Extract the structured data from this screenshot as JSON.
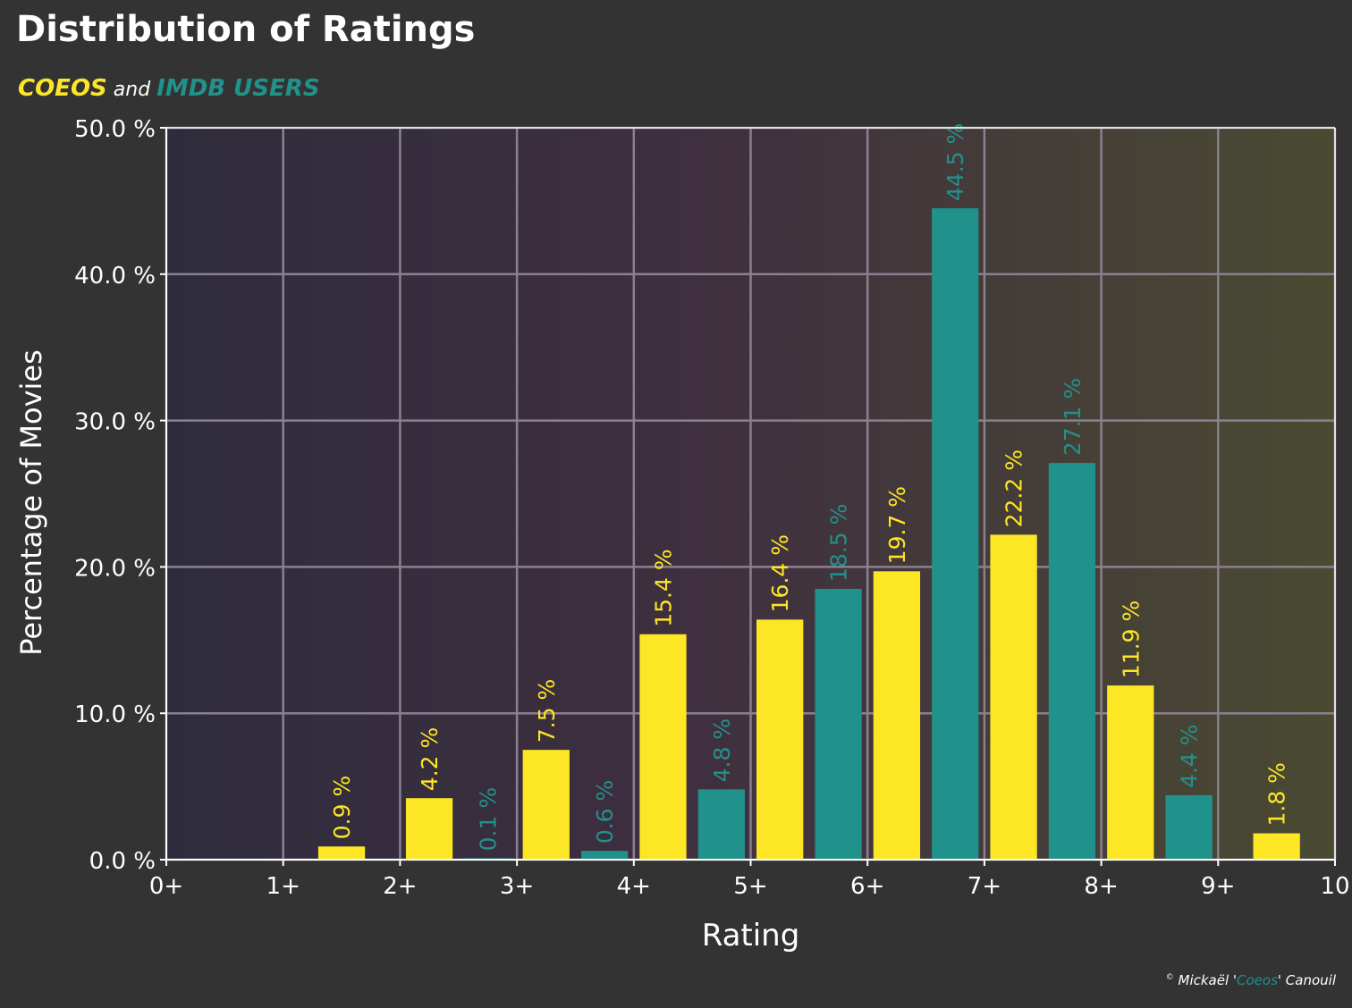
{
  "header": {
    "title": "Distribution of Ratings",
    "subtitle_part1": "COEOS",
    "subtitle_part2": " and ",
    "subtitle_part3": "IMDB USERS"
  },
  "credit": {
    "symbol": "©",
    "prefix": " Mickaël '",
    "accent": "Coeos",
    "suffix": "' Canouil"
  },
  "colors": {
    "background": "#333333",
    "plot_gradient_left": "#2e2c3c",
    "plot_gradient_mid": "#3f2f3f",
    "plot_gradient_right": "#4a4a32",
    "grid": "#8a8090",
    "coeos": "#fde725",
    "imdb": "#21918c",
    "text": "#ffffff"
  },
  "chart_data": {
    "type": "bar",
    "title": "Distribution of Ratings",
    "xlabel": "Rating",
    "ylabel": "Percentage of Movies",
    "xlim": [
      0,
      10
    ],
    "ylim": [
      0,
      50
    ],
    "x_ticks": [
      0,
      1,
      2,
      3,
      4,
      5,
      6,
      7,
      8,
      9,
      10
    ],
    "x_tick_labels": [
      "0+",
      "1+",
      "2+",
      "3+",
      "4+",
      "5+",
      "6+",
      "7+",
      "8+",
      "9+",
      "10"
    ],
    "y_ticks": [
      0,
      10,
      20,
      30,
      40,
      50
    ],
    "y_tick_labels": [
      "0.0 %",
      "10.0 %",
      "20.0 %",
      "30.0 %",
      "40.0 %",
      "50.0 %"
    ],
    "grid": true,
    "series": [
      {
        "name": "COEOS",
        "color": "#fde725",
        "points": [
          {
            "rating": "1+",
            "x": 1.5,
            "value": 0.9,
            "label": "0.9 %"
          },
          {
            "rating": "2+",
            "x": 2.25,
            "value": 4.2,
            "label": "4.2 %"
          },
          {
            "rating": "3+",
            "x": 3.25,
            "value": 7.5,
            "label": "7.5 %"
          },
          {
            "rating": "4+",
            "x": 4.25,
            "value": 15.4,
            "label": "15.4 %"
          },
          {
            "rating": "5+",
            "x": 5.25,
            "value": 16.4,
            "label": "16.4 %"
          },
          {
            "rating": "6+",
            "x": 6.25,
            "value": 19.7,
            "label": "19.7 %"
          },
          {
            "rating": "7+",
            "x": 7.25,
            "value": 22.2,
            "label": "22.2 %"
          },
          {
            "rating": "8+",
            "x": 8.25,
            "value": 11.9,
            "label": "11.9 %"
          },
          {
            "rating": "9+",
            "x": 9.5,
            "value": 1.8,
            "label": "1.8 %"
          }
        ]
      },
      {
        "name": "IMDB USERS",
        "color": "#21918c",
        "points": [
          {
            "rating": "2+",
            "x": 2.75,
            "value": 0.1,
            "label": "0.1 %"
          },
          {
            "rating": "3+",
            "x": 3.75,
            "value": 0.6,
            "label": "0.6 %"
          },
          {
            "rating": "4+",
            "x": 4.75,
            "value": 4.8,
            "label": "4.8 %"
          },
          {
            "rating": "5+",
            "x": 5.75,
            "value": 18.5,
            "label": "18.5 %"
          },
          {
            "rating": "6+",
            "x": 6.75,
            "value": 44.5,
            "label": "44.5 %"
          },
          {
            "rating": "7+",
            "x": 7.75,
            "value": 27.1,
            "label": "27.1 %"
          },
          {
            "rating": "8+",
            "x": 8.75,
            "value": 4.4,
            "label": "4.4 %"
          }
        ]
      }
    ]
  }
}
